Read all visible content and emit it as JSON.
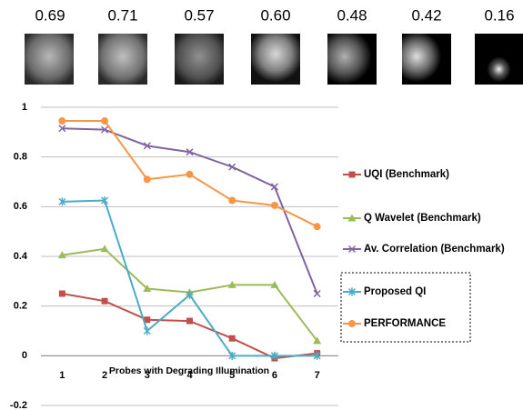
{
  "faces": {
    "scores": [
      "0.69",
      "0.71",
      "0.57",
      "0.60",
      "0.48",
      "0.42",
      "0.16"
    ]
  },
  "chart_data": {
    "type": "line",
    "x_label": "Probes with Degrading Illumination",
    "categories": [
      "1",
      "2",
      "3",
      "4",
      "5",
      "6",
      "7"
    ],
    "ylim": [
      -0.2,
      1
    ],
    "yticks": [
      -0.2,
      0,
      0.2,
      0.4,
      0.6,
      0.8,
      1
    ],
    "grid": true,
    "series": [
      {
        "name": "UQI (Benchmark)",
        "color": "#c0504d",
        "marker": "square",
        "values": [
          0.25,
          0.22,
          0.145,
          0.14,
          0.07,
          -0.01,
          0.01
        ]
      },
      {
        "name": "Q Wavelet (Benchmark)",
        "color": "#9bbb59",
        "marker": "triangle",
        "values": [
          0.405,
          0.43,
          0.27,
          0.255,
          0.285,
          0.285,
          0.06
        ]
      },
      {
        "name": "Av. Correlation (Benchmark)",
        "color": "#8064a2",
        "marker": "x",
        "values": [
          0.915,
          0.91,
          0.845,
          0.82,
          0.76,
          0.68,
          0.25
        ]
      },
      {
        "name": "Proposed QI",
        "color": "#4bacc6",
        "marker": "star",
        "values": [
          0.62,
          0.625,
          0.1,
          0.245,
          0,
          0,
          0
        ]
      },
      {
        "name": "PERFORMANCE",
        "color": "#f79646",
        "marker": "circle",
        "values": [
          0.945,
          0.945,
          0.71,
          0.73,
          0.625,
          0.605,
          0.52
        ]
      }
    ]
  }
}
